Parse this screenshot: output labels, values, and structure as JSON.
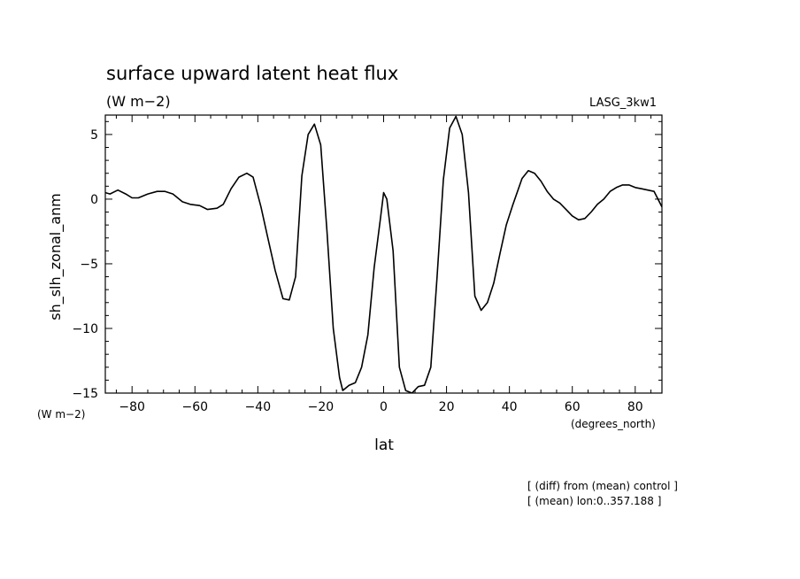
{
  "chart_data": {
    "type": "line",
    "title": "surface upward latent heat flux",
    "units": "(W m−2)",
    "model": "LASG_3kw1",
    "ylabel": "sh_slh_zonal_anm",
    "ylabel_units": "(W m−2)",
    "xlabel": "lat",
    "xlabel_units": "(degrees_north)",
    "xlim": [
      -88.5,
      88.5
    ],
    "ylim": [
      -15,
      6.5
    ],
    "x_ticks": [
      -80,
      -60,
      -40,
      -20,
      0,
      20,
      40,
      60,
      80
    ],
    "x_tick_labels": [
      "−80",
      "−60",
      "−40",
      "−20",
      "0",
      "20",
      "40",
      "60",
      "80"
    ],
    "y_ticks": [
      -15,
      -10,
      -5,
      0,
      5
    ],
    "y_tick_labels": [
      "−15",
      "−10",
      "−5",
      "0",
      "5"
    ],
    "grid": false,
    "series": [
      {
        "x": [
          -88.5,
          -87,
          -84.5,
          -82,
          -80,
          -78,
          -75,
          -72,
          -69.5,
          -67,
          -64,
          -61.5,
          -58.5,
          -56,
          -53,
          -51,
          -48.5,
          -46,
          -43.5,
          -41.5,
          -39,
          -37,
          -34.5,
          -32,
          -30,
          -28,
          -26,
          -24,
          -22,
          -20,
          -18,
          -16,
          -14,
          -13,
          -11,
          -9,
          -7,
          -5,
          -3,
          -1,
          0,
          1,
          3,
          5,
          7,
          9,
          11,
          13,
          15,
          17,
          19,
          21,
          23,
          25,
          27,
          29,
          31,
          33,
          35,
          37,
          39,
          41,
          44,
          46,
          48,
          50,
          52,
          54,
          56,
          58,
          60,
          62,
          64,
          66,
          68,
          70,
          72,
          74,
          76,
          78,
          80,
          82,
          84,
          86,
          88.5
        ],
        "y": [
          0.5,
          0.4,
          0.7,
          0.4,
          0.1,
          0.1,
          0.4,
          0.6,
          0.6,
          0.4,
          -0.2,
          -0.4,
          -0.5,
          -0.8,
          -0.7,
          -0.4,
          0.8,
          1.7,
          2.0,
          1.7,
          -0.6,
          -2.8,
          -5.5,
          -7.7,
          -7.8,
          -6.0,
          1.8,
          5.0,
          5.8,
          4.2,
          -2.5,
          -10.0,
          -13.8,
          -14.8,
          -14.4,
          -14.2,
          -13.0,
          -10.5,
          -5.3,
          -1.5,
          0.5,
          0.0,
          -4.0,
          -13.0,
          -14.8,
          -15.0,
          -14.5,
          -14.4,
          -13.0,
          -6.0,
          1.5,
          5.5,
          6.4,
          5.0,
          0.5,
          -7.5,
          -8.6,
          -8.0,
          -6.5,
          -4.2,
          -2.0,
          -0.5,
          1.6,
          2.2,
          2.0,
          1.4,
          0.6,
          0.0,
          -0.3,
          -0.8,
          -1.3,
          -1.6,
          -1.5,
          -1.0,
          -0.4,
          0.0,
          0.6,
          0.9,
          1.1,
          1.1,
          0.9,
          0.8,
          0.7,
          0.6,
          -0.6
        ]
      }
    ]
  },
  "footnotes": [
    "[ (diff) from (mean) control ]",
    "[ (mean) lon:0..357.188 ]"
  ]
}
